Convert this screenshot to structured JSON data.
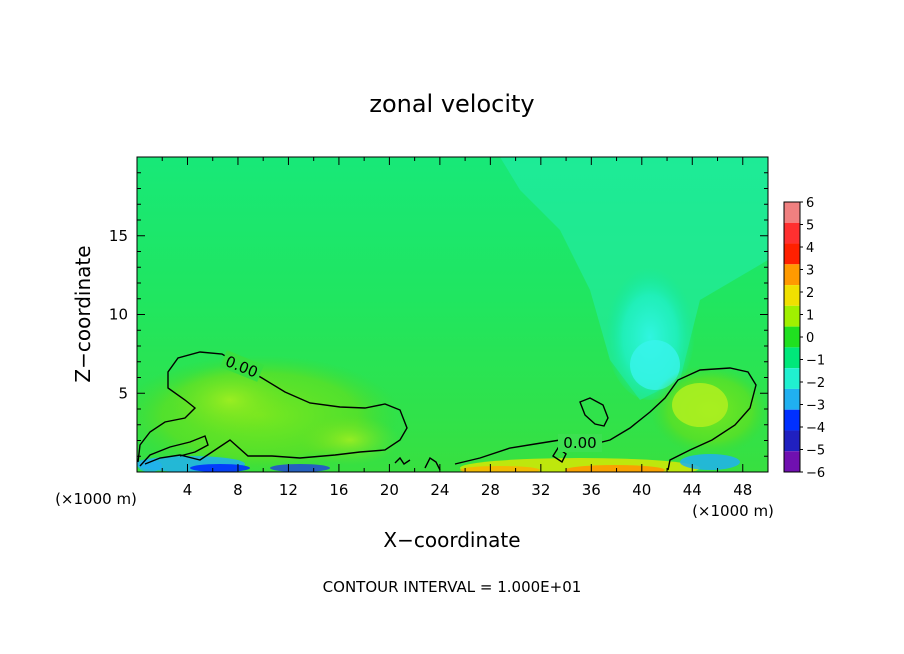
{
  "chart_data": {
    "type": "heatmap",
    "title": "zonal velocity",
    "xlabel": "X−coordinate",
    "ylabel": "Z−coordinate",
    "x_unit_left": "(×1000 m)",
    "x_unit_right": "(×1000 m)",
    "xlim": [
      0,
      50
    ],
    "ylim": [
      0,
      20
    ],
    "x_ticks": [
      4,
      8,
      12,
      16,
      20,
      24,
      28,
      32,
      36,
      40,
      44,
      48
    ],
    "x_tick_labels": [
      "4",
      "8",
      "12",
      "16",
      "20",
      "24",
      "28",
      "32",
      "36",
      "40",
      "44",
      "48"
    ],
    "y_ticks": [
      5,
      10,
      15
    ],
    "y_tick_labels": [
      "5",
      "10",
      "15"
    ],
    "colorbar": {
      "levels": [
        6,
        5,
        4,
        3,
        2,
        1,
        0,
        -1,
        -2,
        -3,
        -4,
        -5,
        -6
      ],
      "labels": [
        "6",
        "5",
        "4",
        "3",
        "2",
        "1",
        "0",
        "−1",
        "−2",
        "−3",
        "−4",
        "−5",
        "−6"
      ],
      "colors": [
        "#f08080",
        "#ff3030",
        "#ff2000",
        "#ff9a00",
        "#f0e000",
        "#a0f000",
        "#20e020",
        "#00e87a",
        "#20f0d0",
        "#20b0f0",
        "#0030ff",
        "#2020c0",
        "#7010b0"
      ]
    },
    "contour_label": "0.00",
    "contour_labels": [
      "0.00",
      "0.00"
    ],
    "grid": false
  },
  "footer": {
    "contour_interval": "CONTOUR INTERVAL = 1.000E+01"
  }
}
